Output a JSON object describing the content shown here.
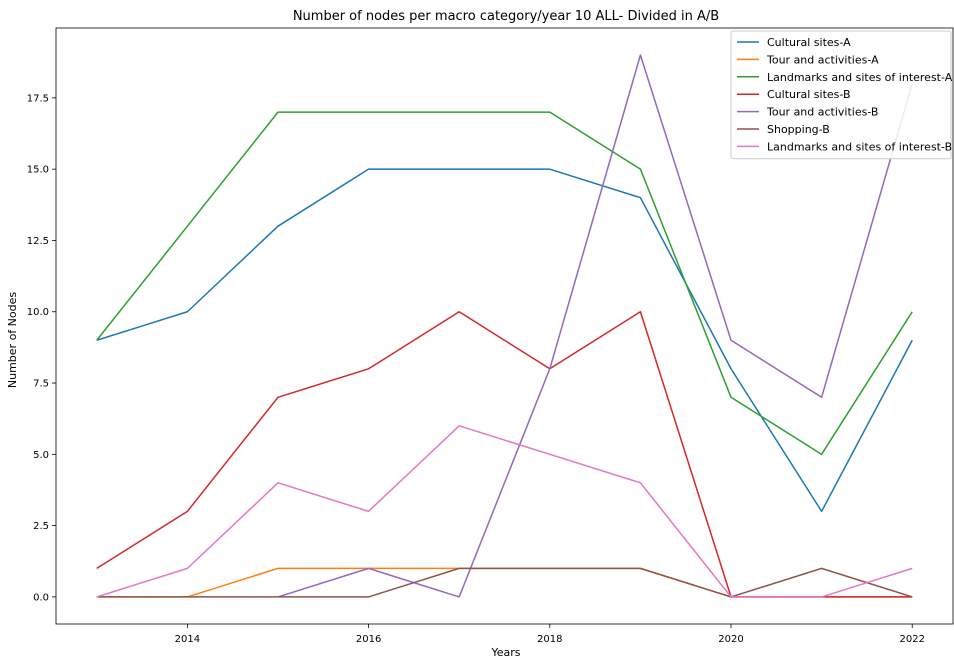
{
  "chart_data": {
    "type": "line",
    "title": "Number of nodes per macro category/year 10 ALL- Divided in A/B",
    "xlabel": "Years",
    "ylabel": "Number of Nodes",
    "x": [
      2013,
      2014,
      2015,
      2016,
      2017,
      2018,
      2019,
      2020,
      2021,
      2022
    ],
    "xlim": [
      2012.55,
      2022.45
    ],
    "ylim": [
      -0.95,
      19.95
    ],
    "xticks": [
      2014,
      2016,
      2018,
      2020,
      2022
    ],
    "yticks": [
      0.0,
      2.5,
      5.0,
      7.5,
      10.0,
      12.5,
      15.0,
      17.5
    ],
    "ytick_labels": [
      "0.0",
      "2.5",
      "5.0",
      "7.5",
      "10.0",
      "12.5",
      "15.0",
      "17.5"
    ],
    "grid": false,
    "legend_position": "top-right",
    "series": [
      {
        "name": "Cultural sites-A",
        "color": "#1f77b4",
        "values": [
          9,
          10,
          13,
          15,
          15,
          15,
          14,
          8,
          3,
          9
        ]
      },
      {
        "name": "Tour and activities-A",
        "color": "#ff7f0e",
        "values": [
          0,
          0,
          1,
          1,
          1,
          1,
          1,
          0,
          0,
          0
        ]
      },
      {
        "name": "Landmarks and sites of interest-A",
        "color": "#2ca02c",
        "values": [
          9,
          13,
          17,
          17,
          17,
          17,
          15,
          7,
          5,
          10
        ]
      },
      {
        "name": "Cultural sites-B",
        "color": "#d62728",
        "values": [
          1,
          3,
          7,
          8,
          10,
          8,
          10,
          0,
          0,
          0
        ]
      },
      {
        "name": "Tour and activities-B",
        "color": "#9467bd",
        "values": [
          null,
          null,
          0,
          1,
          0,
          8,
          19,
          9,
          7,
          18
        ]
      },
      {
        "name": "Shopping-B",
        "color": "#8c564b",
        "values": [
          0,
          0,
          0,
          0,
          1,
          1,
          1,
          0,
          1,
          0
        ]
      },
      {
        "name": "Landmarks and sites of interest-B",
        "color": "#e377c2",
        "values": [
          0,
          1,
          4,
          3,
          6,
          5,
          4,
          0,
          0,
          1
        ]
      }
    ]
  }
}
